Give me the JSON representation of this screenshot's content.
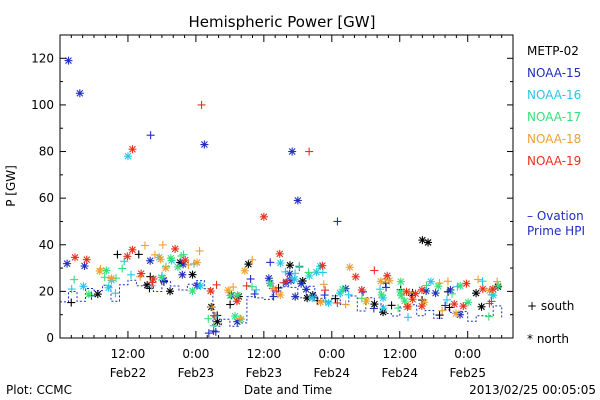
{
  "chart_data": {
    "type": "scatter",
    "title": "Hemispheric Power [GW]",
    "ylabel": "P [GW]",
    "xlabel": "Date and Time",
    "ylim": [
      0,
      130
    ],
    "yticks": [
      0,
      20,
      40,
      60,
      80,
      100,
      120
    ],
    "xlim_hours": [
      0,
      80
    ],
    "xticks": [
      {
        "hour": 12,
        "line1": "12:00",
        "line2": "Feb22"
      },
      {
        "hour": 24,
        "line1": "0:00",
        "line2": "Feb23"
      },
      {
        "hour": 36,
        "line1": "12:00",
        "line2": "Feb23"
      },
      {
        "hour": 48,
        "line1": "0:00",
        "line2": "Feb24"
      },
      {
        "hour": 60,
        "line1": "12:00",
        "line2": "Feb24"
      },
      {
        "hour": 72,
        "line1": "0:00",
        "line2": "Feb25"
      }
    ],
    "legend_position": "right",
    "series": [
      {
        "name": "METP-02",
        "color": "#000000"
      },
      {
        "name": "NOAA-15",
        "color": "#1f2fbf"
      },
      {
        "name": "NOAA-16",
        "color": "#22c8e8"
      },
      {
        "name": "NOAA-17",
        "color": "#33e07a"
      },
      {
        "name": "NOAA-18",
        "color": "#f0a030"
      },
      {
        "name": "NOAA-19",
        "color": "#e8321e"
      }
    ],
    "ovation": {
      "label_line1": "– Ovation",
      "label_line2": "Prime HPI",
      "color": "#1f2fbf"
    },
    "markers": {
      "south": "+ south",
      "north": "* north"
    },
    "highlights": [
      {
        "series": "NOAA-15",
        "hour": 1.5,
        "value": 119
      },
      {
        "series": "NOAA-15",
        "hour": 3.5,
        "value": 105
      },
      {
        "series": "NOAA-15",
        "hour": 16,
        "value": 87
      },
      {
        "series": "NOAA-16",
        "hour": 12,
        "value": 78
      },
      {
        "series": "NOAA-19",
        "hour": 12.8,
        "value": 81
      },
      {
        "series": "NOAA-19",
        "hour": 25,
        "value": 100
      },
      {
        "series": "NOAA-15",
        "hour": 25.5,
        "value": 83
      },
      {
        "series": "NOAA-15",
        "hour": 41,
        "value": 80
      },
      {
        "series": "NOAA-19",
        "hour": 44,
        "value": 80
      },
      {
        "series": "NOAA-15",
        "hour": 42,
        "value": 59
      },
      {
        "series": "NOAA-19",
        "hour": 36,
        "value": 52
      },
      {
        "series": "NOAA-15",
        "hour": 49,
        "value": 50
      },
      {
        "series": "METP-02",
        "hour": 64,
        "value": 42
      },
      {
        "series": "METP-02",
        "hour": 65,
        "value": 41
      }
    ]
  },
  "footer": {
    "left": "Plot: CCMC",
    "right": "2013/02/25 00:05:05"
  }
}
